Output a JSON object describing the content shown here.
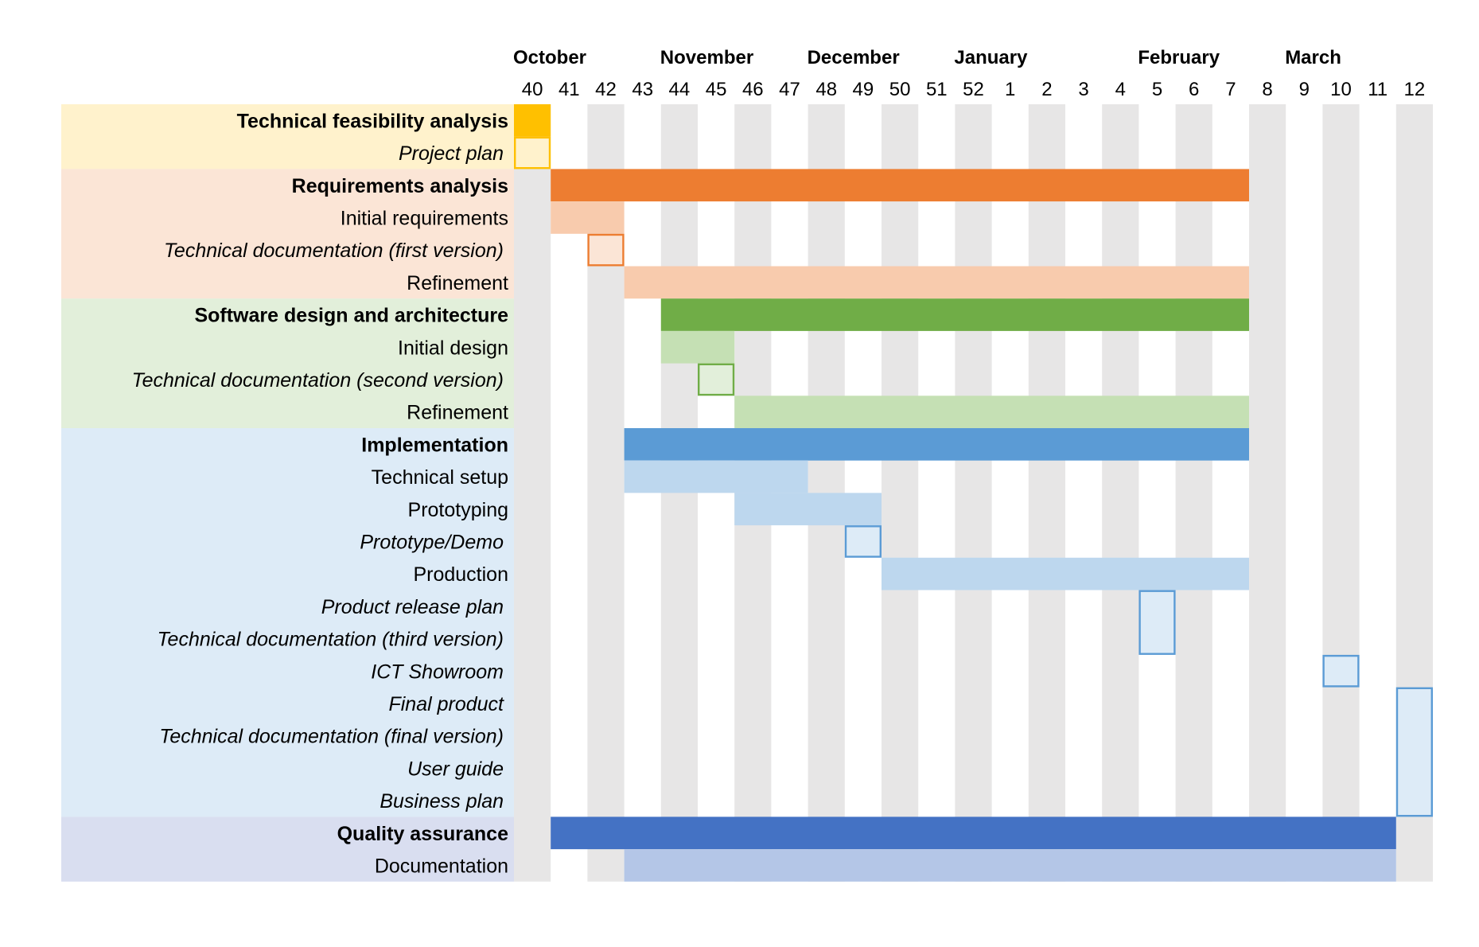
{
  "chart_data": {
    "type": "gantt",
    "title": "",
    "x_unit": "week",
    "weeks": [
      "40",
      "41",
      "42",
      "43",
      "44",
      "45",
      "46",
      "47",
      "48",
      "49",
      "50",
      "51",
      "52",
      "1",
      "2",
      "3",
      "4",
      "5",
      "6",
      "7",
      "8",
      "9",
      "10",
      "11",
      "12"
    ],
    "months": [
      {
        "label": "October",
        "start_week_index": 0
      },
      {
        "label": "November",
        "start_week_index": 4
      },
      {
        "label": "December",
        "start_week_index": 8
      },
      {
        "label": "January",
        "start_week_index": 12
      },
      {
        "label": "February",
        "start_week_index": 17
      },
      {
        "label": "March",
        "start_week_index": 21
      }
    ],
    "groups": [
      {
        "name": "Technical feasibility analysis",
        "colors": {
          "band": "#FFF2CC",
          "main": "#FFC000",
          "sub": "#FFE699",
          "milestone_fill": "#FFF2CC",
          "milestone_stroke": "#FFC000"
        }
      },
      {
        "name": "Requirements analysis",
        "colors": {
          "band": "#FBE5D6",
          "main": "#ED7D31",
          "sub": "#F8CBAD",
          "milestone_fill": "#FBE5D6",
          "milestone_stroke": "#ED7D31"
        }
      },
      {
        "name": "Software design and architecture",
        "colors": {
          "band": "#E2EFDA",
          "main": "#70AD47",
          "sub": "#C5E0B4",
          "milestone_fill": "#E2EFDA",
          "milestone_stroke": "#70AD47"
        }
      },
      {
        "name": "Implementation",
        "colors": {
          "band": "#DDEBF7",
          "main": "#5B9BD5",
          "sub": "#BDD7EE",
          "milestone_fill": "#DDEBF7",
          "milestone_stroke": "#5B9BD5"
        }
      },
      {
        "name": "Quality assurance",
        "colors": {
          "band": "#D9DEF0",
          "main": "#4472C4",
          "sub": "#B4C6E7",
          "milestone_fill": "#D9DEF0",
          "milestone_stroke": "#4472C4"
        }
      }
    ],
    "rows": [
      {
        "label": "Technical feasibility analysis",
        "style": "bold",
        "group": 0,
        "kind": "main",
        "start": 0,
        "end": 1
      },
      {
        "label": "Project plan",
        "style": "italic",
        "group": 0,
        "kind": "milestone",
        "start": 0,
        "end": 1,
        "rows_spanned": 1
      },
      {
        "label": "Requirements analysis",
        "style": "bold",
        "group": 1,
        "kind": "main",
        "start": 1,
        "end": 20
      },
      {
        "label": "Initial requirements",
        "style": "normal",
        "group": 1,
        "kind": "sub",
        "start": 1,
        "end": 3
      },
      {
        "label": "Technical documentation (first version)",
        "style": "italic",
        "group": 1,
        "kind": "milestone",
        "start": 2,
        "end": 3,
        "rows_spanned": 1
      },
      {
        "label": "Refinement",
        "style": "normal",
        "group": 1,
        "kind": "sub",
        "start": 3,
        "end": 20
      },
      {
        "label": "Software design and architecture",
        "style": "bold",
        "group": 2,
        "kind": "main",
        "start": 4,
        "end": 20
      },
      {
        "label": "Initial design",
        "style": "normal",
        "group": 2,
        "kind": "sub",
        "start": 4,
        "end": 6
      },
      {
        "label": "Technical documentation (second version)",
        "style": "italic",
        "group": 2,
        "kind": "milestone",
        "start": 5,
        "end": 6,
        "rows_spanned": 1
      },
      {
        "label": "Refinement",
        "style": "normal",
        "group": 2,
        "kind": "sub",
        "start": 6,
        "end": 20
      },
      {
        "label": "Implementation",
        "style": "bold",
        "group": 3,
        "kind": "main",
        "start": 3,
        "end": 20
      },
      {
        "label": "Technical setup",
        "style": "normal",
        "group": 3,
        "kind": "sub",
        "start": 3,
        "end": 8
      },
      {
        "label": "Prototyping",
        "style": "normal",
        "group": 3,
        "kind": "sub",
        "start": 6,
        "end": 10
      },
      {
        "label": "Prototype/Demo",
        "style": "italic",
        "group": 3,
        "kind": "milestone",
        "start": 9,
        "end": 10,
        "rows_spanned": 1
      },
      {
        "label": "Production",
        "style": "normal",
        "group": 3,
        "kind": "sub",
        "start": 10,
        "end": 20
      },
      {
        "label": "Product release plan",
        "style": "italic",
        "group": 3,
        "kind": "milestone",
        "start": 17,
        "end": 18,
        "rows_spanned": 2
      },
      {
        "label": "Technical documentation (third version)",
        "style": "italic",
        "group": 3,
        "kind": "none"
      },
      {
        "label": "ICT Showroom",
        "style": "italic",
        "group": 3,
        "kind": "milestone",
        "start": 22,
        "end": 23,
        "rows_spanned": 1
      },
      {
        "label": "Final product",
        "style": "italic",
        "group": 3,
        "kind": "milestone",
        "start": 24,
        "end": 25,
        "rows_spanned": 4
      },
      {
        "label": "Technical documentation (final version)",
        "style": "italic",
        "group": 3,
        "kind": "none"
      },
      {
        "label": "User guide",
        "style": "italic",
        "group": 3,
        "kind": "none"
      },
      {
        "label": "Business plan",
        "style": "italic",
        "group": 3,
        "kind": "none"
      },
      {
        "label": "Quality assurance",
        "style": "bold",
        "group": 4,
        "kind": "main",
        "start": 1,
        "end": 24
      },
      {
        "label": "Documentation",
        "style": "normal",
        "group": 4,
        "kind": "sub",
        "start": 3,
        "end": 24
      }
    ],
    "stripe_color": "#E7E6E6"
  }
}
